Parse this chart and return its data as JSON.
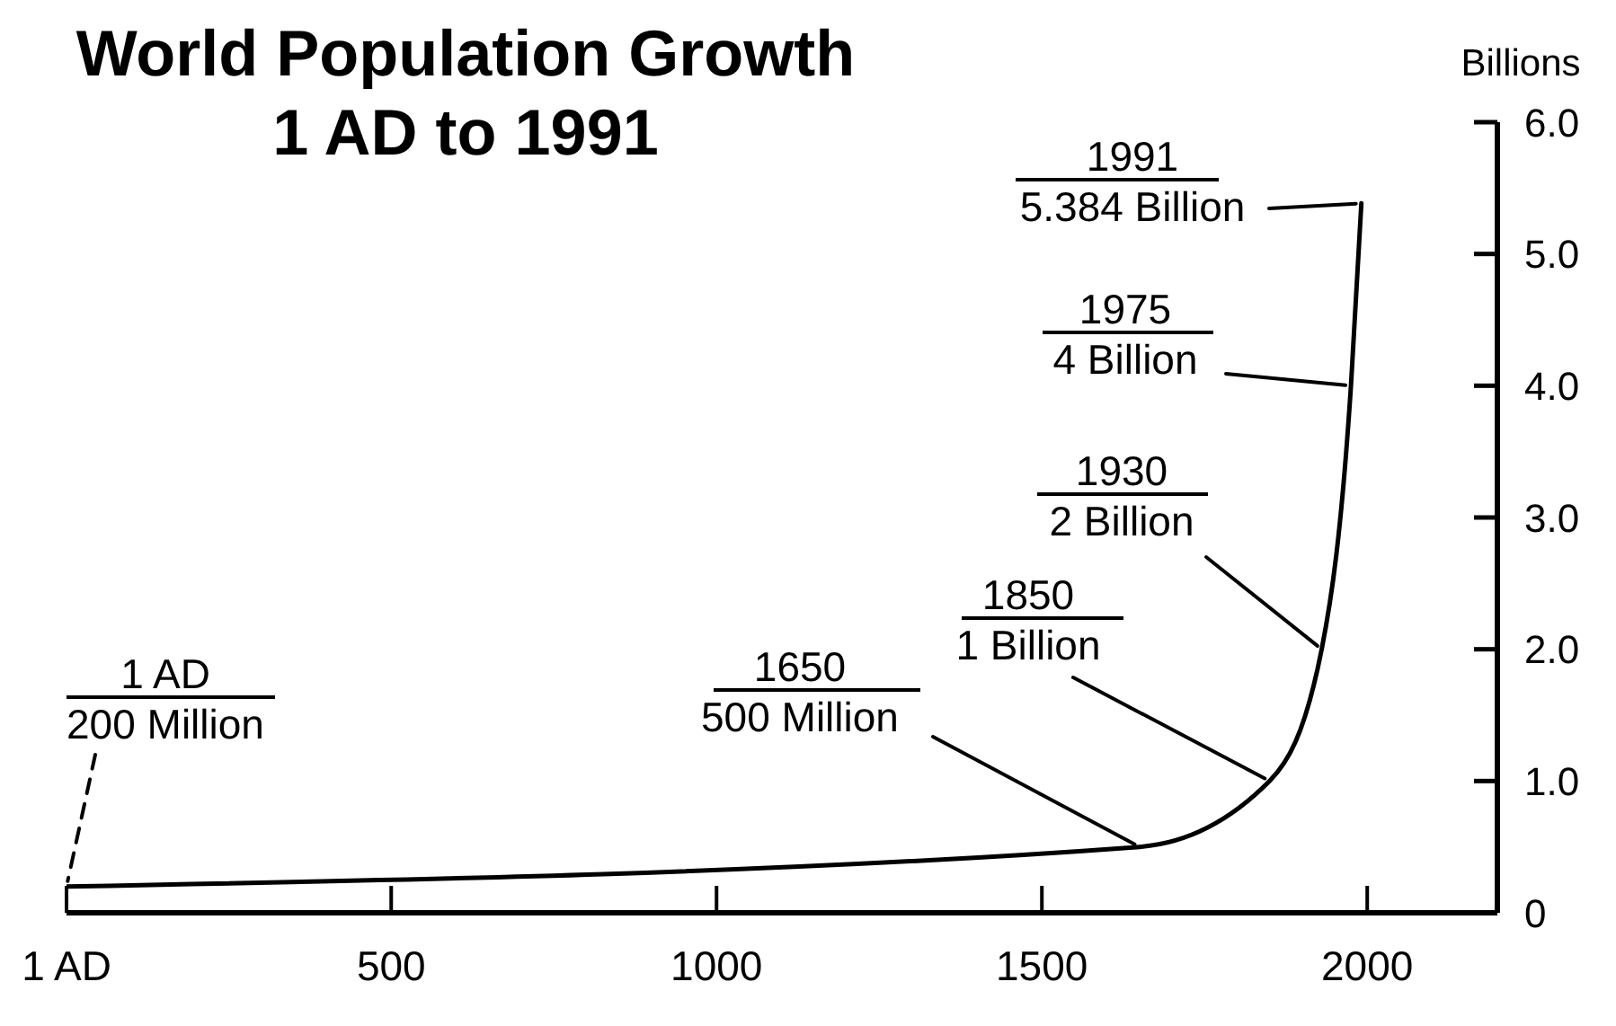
{
  "chart_data": {
    "type": "line",
    "title": "World Population Growth\n1 AD to 1991",
    "ylabel": "Billions",
    "x": [
      1,
      1650,
      1850,
      1930,
      1975,
      1991
    ],
    "series": [
      {
        "color": "#000000",
        "values": [
          0.2,
          0.5,
          1,
          2,
          4,
          5.384
        ]
      }
    ],
    "xlim": [
      1,
      2200
    ],
    "xticks": [
      {
        "value": 1,
        "label": "1 AD"
      },
      500,
      1000,
      1500,
      2000
    ],
    "ylim": [
      0,
      6
    ],
    "yticks": [
      0,
      {
        "value": 1,
        "label": "1.0"
      },
      {
        "value": 2,
        "label": "2.0"
      },
      {
        "value": 3,
        "label": "3.0"
      },
      {
        "value": 4,
        "label": "4.0"
      },
      {
        "value": 5,
        "label": "5.0"
      },
      {
        "value": 6,
        "label": "6.0"
      }
    ],
    "annotations": [
      {
        "text": "1 AD\n200 Million",
        "x": 1,
        "y": 0.2
      },
      {
        "text": "1650\n500 Million",
        "x": 1650,
        "y": 0.5
      },
      {
        "text": "1850\n1 Billion",
        "x": 1850,
        "y": 1
      },
      {
        "text": "1930\n2 Billion",
        "x": 1930,
        "y": 2
      },
      {
        "text": "1975\n4 Billion",
        "x": 1975,
        "y": 4
      },
      {
        "text": "1991\n5.384 Billion",
        "x": 1991,
        "y": 5.384
      }
    ]
  }
}
